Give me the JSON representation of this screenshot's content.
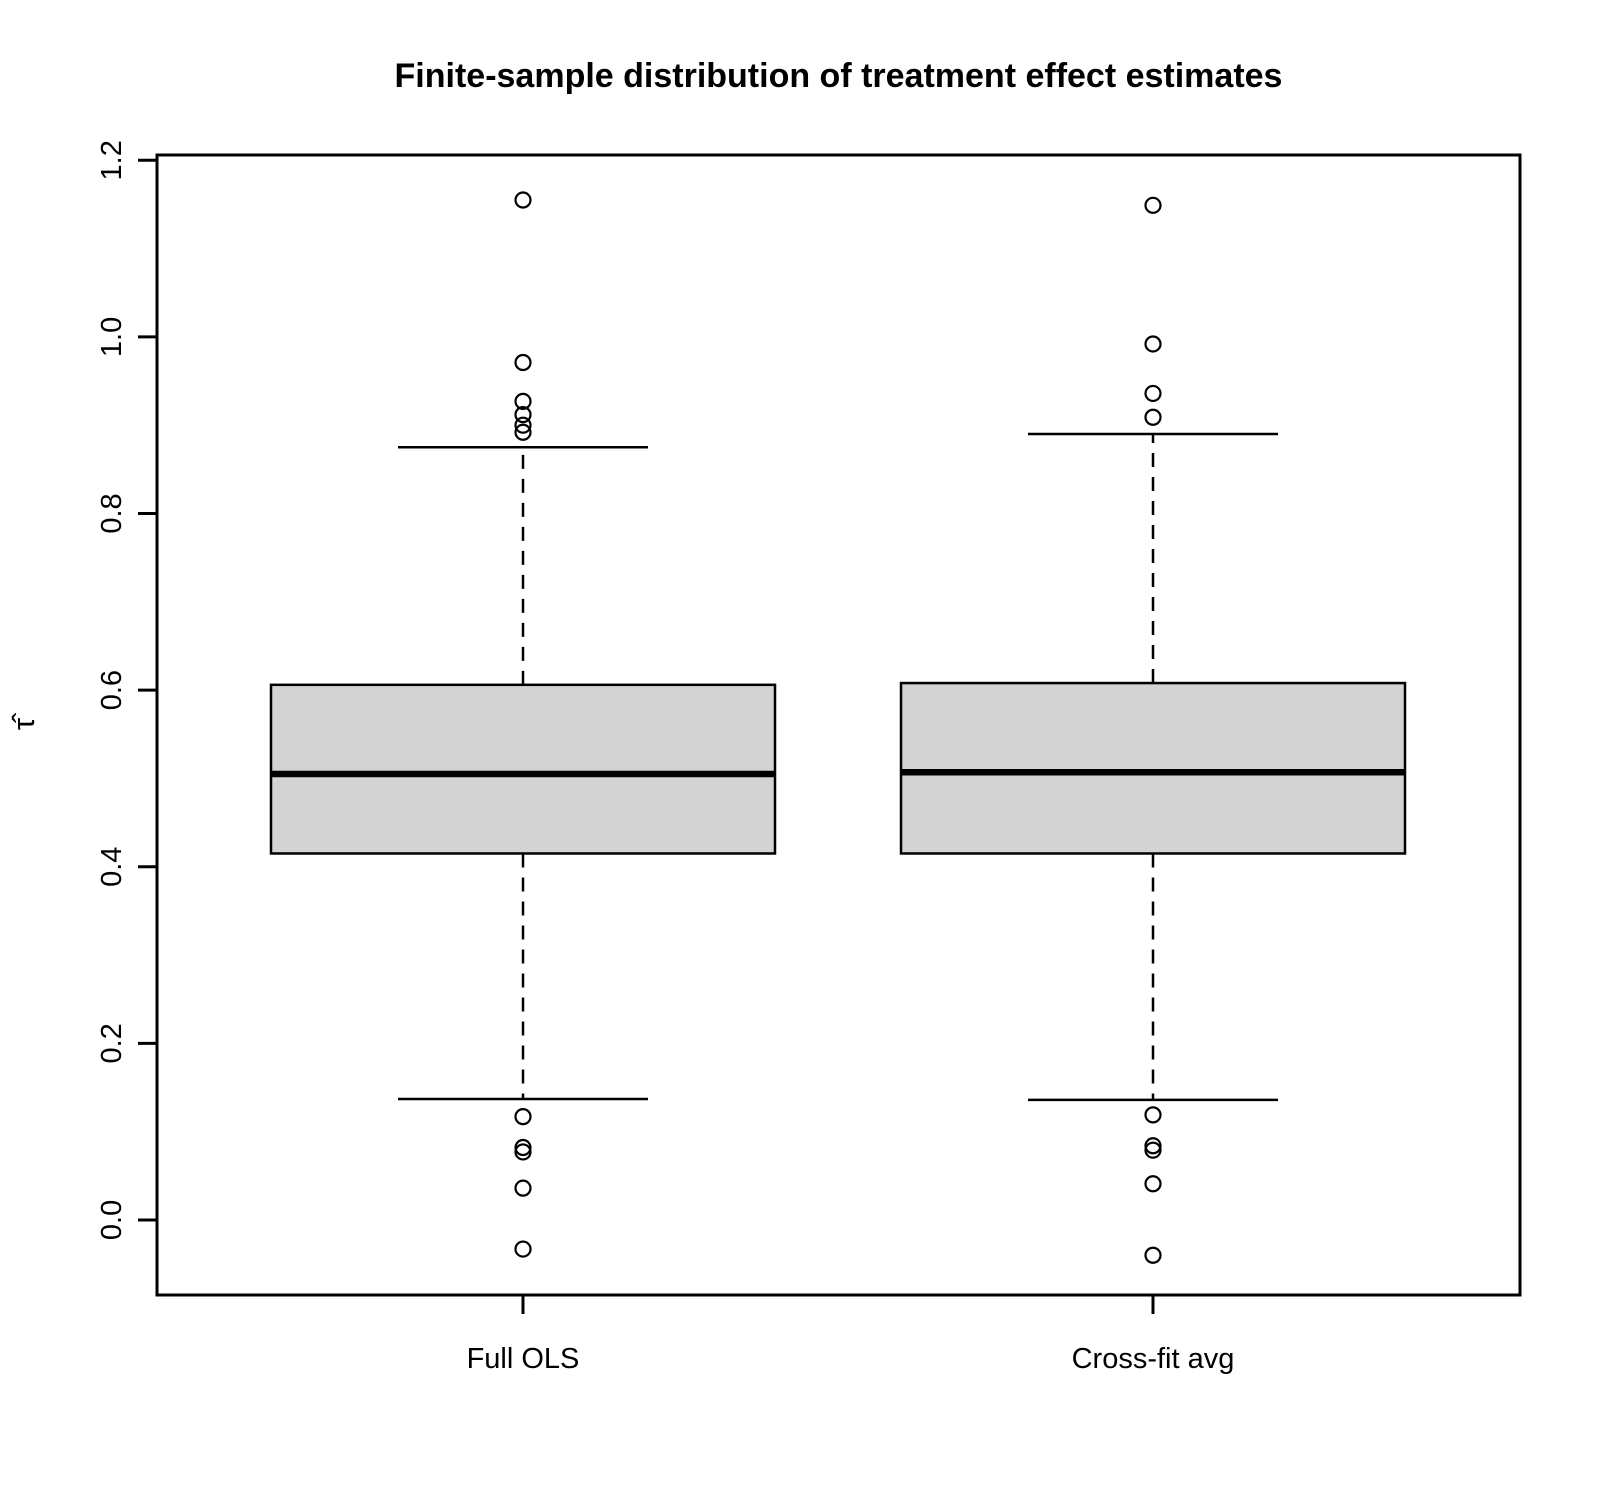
{
  "chart_data": {
    "type": "boxplot",
    "title": "Finite-sample distribution of treatment effect estimates",
    "xlabel": "",
    "ylabel": "τ̂",
    "categories": [
      "Full OLS",
      "Cross-fit avg"
    ],
    "ylim": [
      -0.085,
      1.206
    ],
    "yticks": [
      0.0,
      0.2,
      0.4,
      0.6,
      0.8,
      1.0,
      1.2
    ],
    "ytick_labels": [
      "0.0",
      "0.2",
      "0.4",
      "0.6",
      "0.8",
      "1.0",
      "1.2"
    ],
    "grid": false,
    "legend": null,
    "box_fill": "#d3d3d3",
    "line_color": "#000000",
    "background": "#ffffff",
    "series": [
      {
        "name": "Full OLS",
        "q1": 0.415,
        "median": 0.505,
        "q3": 0.606,
        "whisker_low": 0.137,
        "whisker_high": 0.875,
        "outliers": [
          1.155,
          0.971,
          0.927,
          0.912,
          0.9,
          0.892,
          0.117,
          0.082,
          0.077,
          0.036,
          -0.033
        ]
      },
      {
        "name": "Cross-fit avg",
        "q1": 0.415,
        "median": 0.507,
        "q3": 0.608,
        "whisker_low": 0.136,
        "whisker_high": 0.89,
        "outliers": [
          1.149,
          0.992,
          0.936,
          0.909,
          0.119,
          0.084,
          0.079,
          0.041,
          -0.04
        ]
      }
    ]
  }
}
